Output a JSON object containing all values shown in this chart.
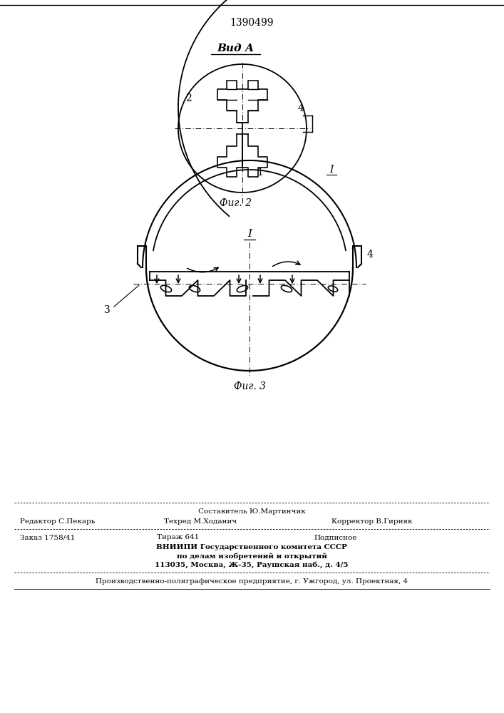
{
  "patent_number": "1390499",
  "fig2_label": "Вид А",
  "fig2_caption": "Фиг. 2",
  "fig3_label": "I",
  "fig3_caption": "Фиг. 3",
  "footer_line1_center": "Составитель Ю.Мартинчик",
  "footer_line2_left": "Редактор С.Пекарь",
  "footer_line2_center": "Техред М.Хoданич",
  "footer_line2_right": "Корректор В.Гирняк",
  "footer_line3_left": "Заказ 1758/41",
  "footer_line3_center": "Тираж 641",
  "footer_line3_right": "Подписное",
  "footer_line4": "ВНИИПИ Государственного комитета СССР",
  "footer_line5": "по делам изобретений и открытий",
  "footer_line6": "113035, Москва, Ж-35, Раушская наб., д. 4/5",
  "footer_last": "Производственно-полиграфическое предприятие, г. Ужгород, ул. Проектная, 4",
  "bg_color": "#ffffff",
  "line_color": "#000000"
}
